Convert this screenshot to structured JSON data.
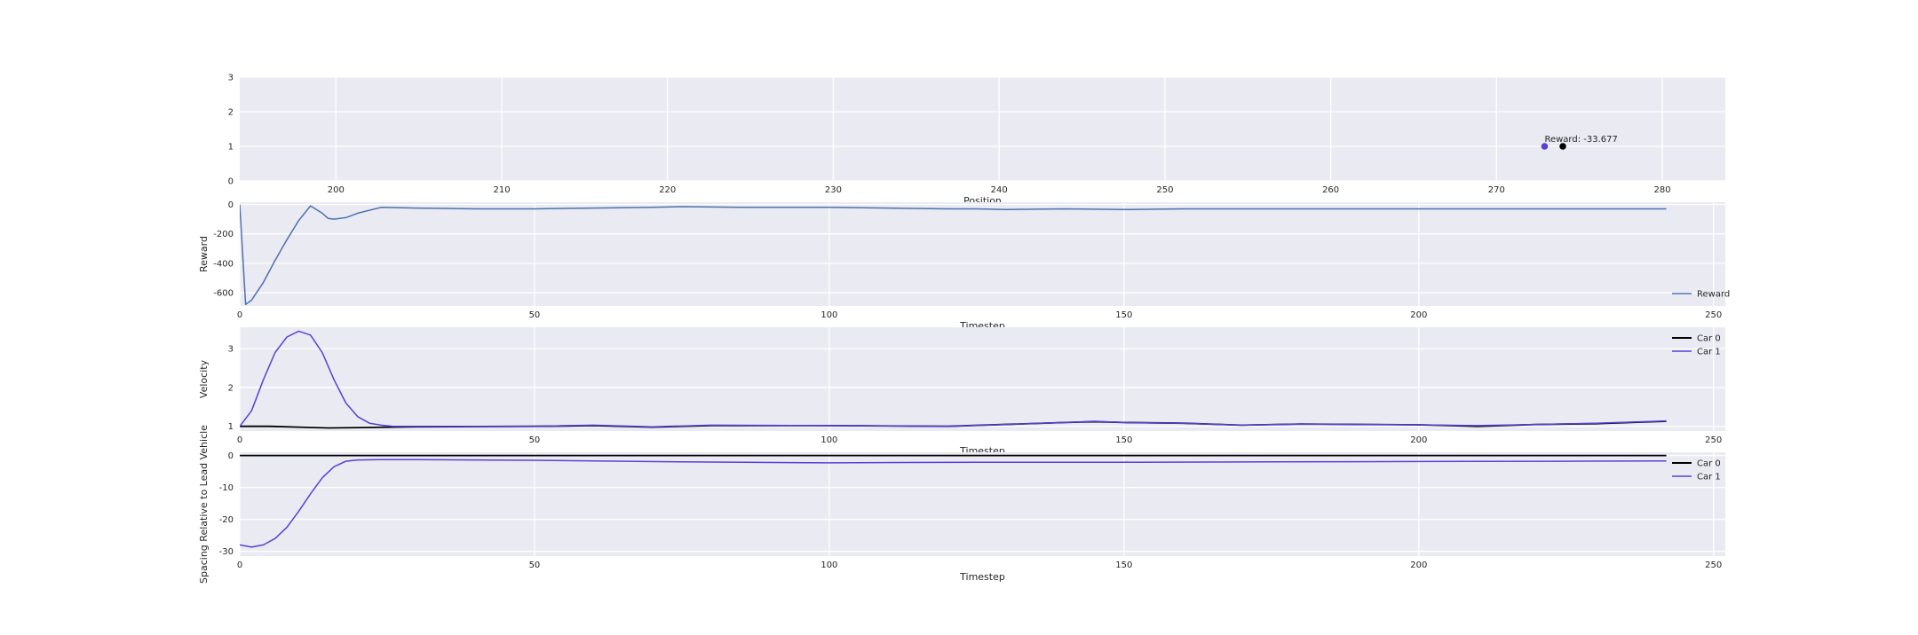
{
  "colors": {
    "blue": "#4c72b0",
    "car0": "#000000",
    "car1": "#5a3fd6",
    "panel": "#eaeaf2"
  },
  "chart_data": [
    {
      "type": "scatter",
      "xlabel": "Position",
      "ylabel": "",
      "xlim": [
        194.2,
        283.8
      ],
      "ylim": [
        0,
        3
      ],
      "xticks": [
        200,
        210,
        220,
        230,
        240,
        250,
        260,
        270,
        280
      ],
      "yticks": [
        0,
        1,
        2,
        3
      ],
      "grid": true,
      "series": [
        {
          "color": "#5a3fd6",
          "x": [
            272.9
          ],
          "y": [
            1
          ]
        },
        {
          "color": "#000000",
          "x": [
            274.0
          ],
          "y": [
            1
          ]
        }
      ],
      "annotation": {
        "text": "Reward: -33.677",
        "x": 272.9,
        "y": 1.05
      }
    },
    {
      "type": "line",
      "xlabel": "Timestep",
      "ylabel": "Reward",
      "xlim": [
        0,
        252
      ],
      "ylim": [
        -690,
        15
      ],
      "xticks": [
        0,
        50,
        100,
        150,
        200,
        250
      ],
      "yticks": [
        0,
        -200,
        -400,
        -600
      ],
      "grid": true,
      "legend": "lower-right",
      "series": [
        {
          "name": "Reward",
          "color": "#4c72b0",
          "x": [
            0,
            1,
            2,
            4,
            6,
            8,
            10,
            12,
            14,
            15,
            16,
            18,
            20,
            24,
            30,
            40,
            50,
            60,
            70,
            75,
            85,
            95,
            100,
            110,
            120,
            125,
            130,
            140,
            150,
            160,
            170,
            180,
            190,
            200,
            210,
            220,
            230,
            235,
            240,
            242
          ],
          "y": [
            0,
            -680,
            -650,
            -530,
            -380,
            -240,
            -110,
            -10,
            -60,
            -95,
            -100,
            -90,
            -60,
            -20,
            -25,
            -30,
            -30,
            -25,
            -20,
            -15,
            -20,
            -20,
            -20,
            -25,
            -30,
            -30,
            -35,
            -30,
            -35,
            -30,
            -30,
            -30,
            -30,
            -30,
            -30,
            -30,
            -30,
            -30,
            -30,
            -30
          ]
        }
      ]
    },
    {
      "type": "line",
      "xlabel": "Timestep",
      "ylabel": "Velocity",
      "xlim": [
        0,
        252
      ],
      "ylim": [
        0.88,
        3.55
      ],
      "xticks": [
        0,
        50,
        100,
        150,
        200,
        250
      ],
      "yticks": [
        1,
        2,
        3
      ],
      "grid": true,
      "legend": "upper-right",
      "series": [
        {
          "name": "Car 0",
          "color": "#000000",
          "x": [
            0,
            5,
            10,
            15,
            20,
            30,
            50,
            60,
            70,
            80,
            100,
            120,
            140,
            145,
            150,
            160,
            170,
            180,
            200,
            210,
            220,
            230,
            242
          ],
          "y": [
            1.0,
            1.0,
            0.98,
            0.96,
            0.97,
            0.99,
            1.0,
            1.02,
            0.98,
            1.02,
            1.02,
            1.0,
            1.1,
            1.12,
            1.1,
            1.08,
            1.03,
            1.06,
            1.04,
            1.0,
            1.05,
            1.07,
            1.13
          ]
        },
        {
          "name": "Car 1",
          "color": "#5a3fd6",
          "x": [
            0,
            2,
            4,
            6,
            8,
            10,
            12,
            14,
            16,
            18,
            20,
            22,
            24,
            26,
            30,
            40,
            50,
            60,
            70,
            80,
            100,
            120,
            140,
            145,
            150,
            160,
            170,
            180,
            200,
            210,
            220,
            230,
            242
          ],
          "y": [
            1.0,
            1.4,
            2.2,
            2.9,
            3.3,
            3.45,
            3.35,
            2.9,
            2.2,
            1.6,
            1.25,
            1.08,
            1.03,
            1.0,
            1.0,
            1.0,
            1.0,
            1.03,
            0.99,
            1.03,
            1.02,
            1.0,
            1.1,
            1.13,
            1.1,
            1.08,
            1.03,
            1.06,
            1.04,
            1.02,
            1.05,
            1.08,
            1.14
          ]
        }
      ]
    },
    {
      "type": "line",
      "xlabel": "Timestep",
      "ylabel": "Spacing Relative to Lead Vehicle",
      "xlim": [
        0,
        252
      ],
      "ylim": [
        -31.5,
        1.0
      ],
      "xticks": [
        0,
        50,
        100,
        150,
        200,
        250
      ],
      "yticks": [
        0,
        -10,
        -20,
        -30
      ],
      "grid": true,
      "legend": "upper-right",
      "series": [
        {
          "name": "Car 0",
          "color": "#000000",
          "x": [
            0,
            242
          ],
          "y": [
            0,
            0
          ]
        },
        {
          "name": "Car 1",
          "color": "#5a3fd6",
          "x": [
            0,
            2,
            4,
            6,
            8,
            10,
            12,
            14,
            16,
            18,
            20,
            24,
            30,
            50,
            75,
            100,
            125,
            150,
            175,
            200,
            225,
            242
          ],
          "y": [
            -28,
            -28.7,
            -28,
            -26,
            -22.5,
            -17.5,
            -12,
            -7,
            -3.5,
            -1.8,
            -1.4,
            -1.3,
            -1.3,
            -1.5,
            -2,
            -2.3,
            -2.1,
            -2.1,
            -2.0,
            -1.9,
            -1.8,
            -1.7
          ]
        }
      ]
    }
  ]
}
